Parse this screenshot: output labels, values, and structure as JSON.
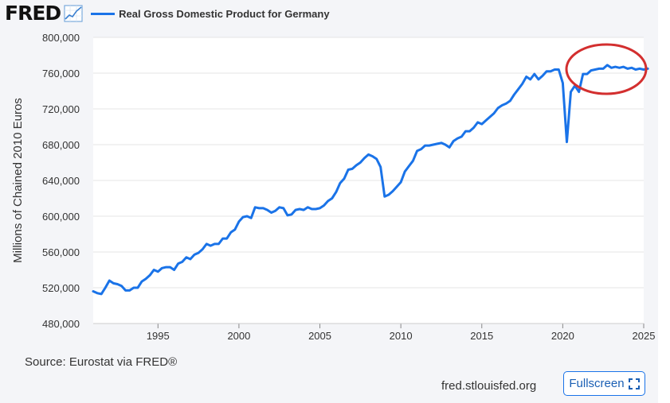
{
  "header": {
    "logo_text": "FRED",
    "logo_icon": "chart-line-icon"
  },
  "colors": {
    "series": "#1a73e8",
    "annotation": "#d32f2f",
    "grid": "#e5e5e5",
    "button_border": "#1a73e8"
  },
  "chart_data": {
    "type": "line",
    "title": "",
    "xlabel": "",
    "ylabel": "Millions of Chained 2010 Euros",
    "xlim": [
      1991.0,
      2025.0
    ],
    "ylim": [
      480000,
      800000
    ],
    "xticks": [
      1995,
      2000,
      2005,
      2010,
      2015,
      2020,
      2025
    ],
    "yticks": [
      480000,
      520000,
      560000,
      600000,
      640000,
      680000,
      720000,
      760000,
      800000
    ],
    "ytick_labels": [
      "480,000",
      "520,000",
      "560,000",
      "600,000",
      "640,000",
      "680,000",
      "720,000",
      "760,000",
      "800,000"
    ],
    "grid": "horizontal",
    "legend_position": "top",
    "annotation": "red ellipse highlighting 2022–2025",
    "series": [
      {
        "name": "Real Gross Domestic Product for Germany",
        "points": [
          [
            1991.0,
            516000
          ],
          [
            1991.25,
            514000
          ],
          [
            1991.5,
            513000
          ],
          [
            1991.75,
            520000
          ],
          [
            1992.0,
            528000
          ],
          [
            1992.25,
            525000
          ],
          [
            1992.5,
            524000
          ],
          [
            1992.75,
            522000
          ],
          [
            1993.0,
            517000
          ],
          [
            1993.25,
            517000
          ],
          [
            1993.5,
            520000
          ],
          [
            1993.75,
            520000
          ],
          [
            1994.0,
            527000
          ],
          [
            1994.25,
            530000
          ],
          [
            1994.5,
            534000
          ],
          [
            1994.75,
            540000
          ],
          [
            1995.0,
            538000
          ],
          [
            1995.25,
            542000
          ],
          [
            1995.5,
            543000
          ],
          [
            1995.75,
            543000
          ],
          [
            1996.0,
            540000
          ],
          [
            1996.25,
            547000
          ],
          [
            1996.5,
            549000
          ],
          [
            1996.75,
            554000
          ],
          [
            1997.0,
            552000
          ],
          [
            1997.25,
            557000
          ],
          [
            1997.5,
            559000
          ],
          [
            1997.75,
            563000
          ],
          [
            1998.0,
            569000
          ],
          [
            1998.25,
            567000
          ],
          [
            1998.5,
            569000
          ],
          [
            1998.75,
            569000
          ],
          [
            1999.0,
            575000
          ],
          [
            1999.25,
            575000
          ],
          [
            1999.5,
            582000
          ],
          [
            1999.75,
            585000
          ],
          [
            2000.0,
            594000
          ],
          [
            2000.25,
            599000
          ],
          [
            2000.5,
            600000
          ],
          [
            2000.75,
            598000
          ],
          [
            2001.0,
            610000
          ],
          [
            2001.25,
            609000
          ],
          [
            2001.5,
            609000
          ],
          [
            2001.75,
            607000
          ],
          [
            2002.0,
            604000
          ],
          [
            2002.25,
            606000
          ],
          [
            2002.5,
            610000
          ],
          [
            2002.75,
            609000
          ],
          [
            2003.0,
            601000
          ],
          [
            2003.25,
            602000
          ],
          [
            2003.5,
            607000
          ],
          [
            2003.75,
            608000
          ],
          [
            2004.0,
            607000
          ],
          [
            2004.25,
            610000
          ],
          [
            2004.5,
            608000
          ],
          [
            2004.75,
            608000
          ],
          [
            2005.0,
            609000
          ],
          [
            2005.25,
            612000
          ],
          [
            2005.5,
            617000
          ],
          [
            2005.75,
            620000
          ],
          [
            2006.0,
            627000
          ],
          [
            2006.25,
            637000
          ],
          [
            2006.5,
            642000
          ],
          [
            2006.75,
            652000
          ],
          [
            2007.0,
            653000
          ],
          [
            2007.25,
            657000
          ],
          [
            2007.5,
            660000
          ],
          [
            2007.75,
            665000
          ],
          [
            2008.0,
            669000
          ],
          [
            2008.25,
            667000
          ],
          [
            2008.5,
            664000
          ],
          [
            2008.75,
            655000
          ],
          [
            2009.0,
            622000
          ],
          [
            2009.25,
            624000
          ],
          [
            2009.5,
            628000
          ],
          [
            2009.75,
            633000
          ],
          [
            2010.0,
            638000
          ],
          [
            2010.25,
            650000
          ],
          [
            2010.5,
            656000
          ],
          [
            2010.75,
            662000
          ],
          [
            2011.0,
            673000
          ],
          [
            2011.25,
            675000
          ],
          [
            2011.5,
            679000
          ],
          [
            2011.75,
            679000
          ],
          [
            2012.0,
            680000
          ],
          [
            2012.25,
            681000
          ],
          [
            2012.5,
            682000
          ],
          [
            2012.75,
            680000
          ],
          [
            2013.0,
            677000
          ],
          [
            2013.25,
            684000
          ],
          [
            2013.5,
            687000
          ],
          [
            2013.75,
            689000
          ],
          [
            2014.0,
            695000
          ],
          [
            2014.25,
            695000
          ],
          [
            2014.5,
            699000
          ],
          [
            2014.75,
            705000
          ],
          [
            2015.0,
            703000
          ],
          [
            2015.25,
            707000
          ],
          [
            2015.5,
            711000
          ],
          [
            2015.75,
            715000
          ],
          [
            2016.0,
            721000
          ],
          [
            2016.25,
            724000
          ],
          [
            2016.5,
            726000
          ],
          [
            2016.75,
            729000
          ],
          [
            2017.0,
            736000
          ],
          [
            2017.25,
            742000
          ],
          [
            2017.5,
            748000
          ],
          [
            2017.75,
            756000
          ],
          [
            2018.0,
            753000
          ],
          [
            2018.25,
            759000
          ],
          [
            2018.5,
            753000
          ],
          [
            2018.75,
            757000
          ],
          [
            2019.0,
            762000
          ],
          [
            2019.25,
            762000
          ],
          [
            2019.5,
            764000
          ],
          [
            2019.75,
            764000
          ],
          [
            2020.0,
            749000
          ],
          [
            2020.25,
            683000
          ],
          [
            2020.5,
            739000
          ],
          [
            2020.75,
            746000
          ],
          [
            2021.0,
            739000
          ],
          [
            2021.25,
            759000
          ],
          [
            2021.5,
            759000
          ],
          [
            2021.75,
            763000
          ],
          [
            2022.0,
            764000
          ],
          [
            2022.25,
            765000
          ],
          [
            2022.5,
            765000
          ],
          [
            2022.75,
            769000
          ],
          [
            2023.0,
            766000
          ],
          [
            2023.25,
            767000
          ],
          [
            2023.5,
            766000
          ],
          [
            2023.75,
            767000
          ],
          [
            2024.0,
            765000
          ],
          [
            2024.25,
            766000
          ],
          [
            2024.5,
            764000
          ],
          [
            2024.75,
            765000
          ],
          [
            2025.0,
            764000
          ],
          [
            2025.25,
            765000
          ]
        ]
      }
    ]
  },
  "footer": {
    "source": "Source: Eurostat via FRED®",
    "site": "fred.stlouisfed.org",
    "fullscreen_label": "Fullscreen",
    "fullscreen_icon": "expand-icon"
  }
}
